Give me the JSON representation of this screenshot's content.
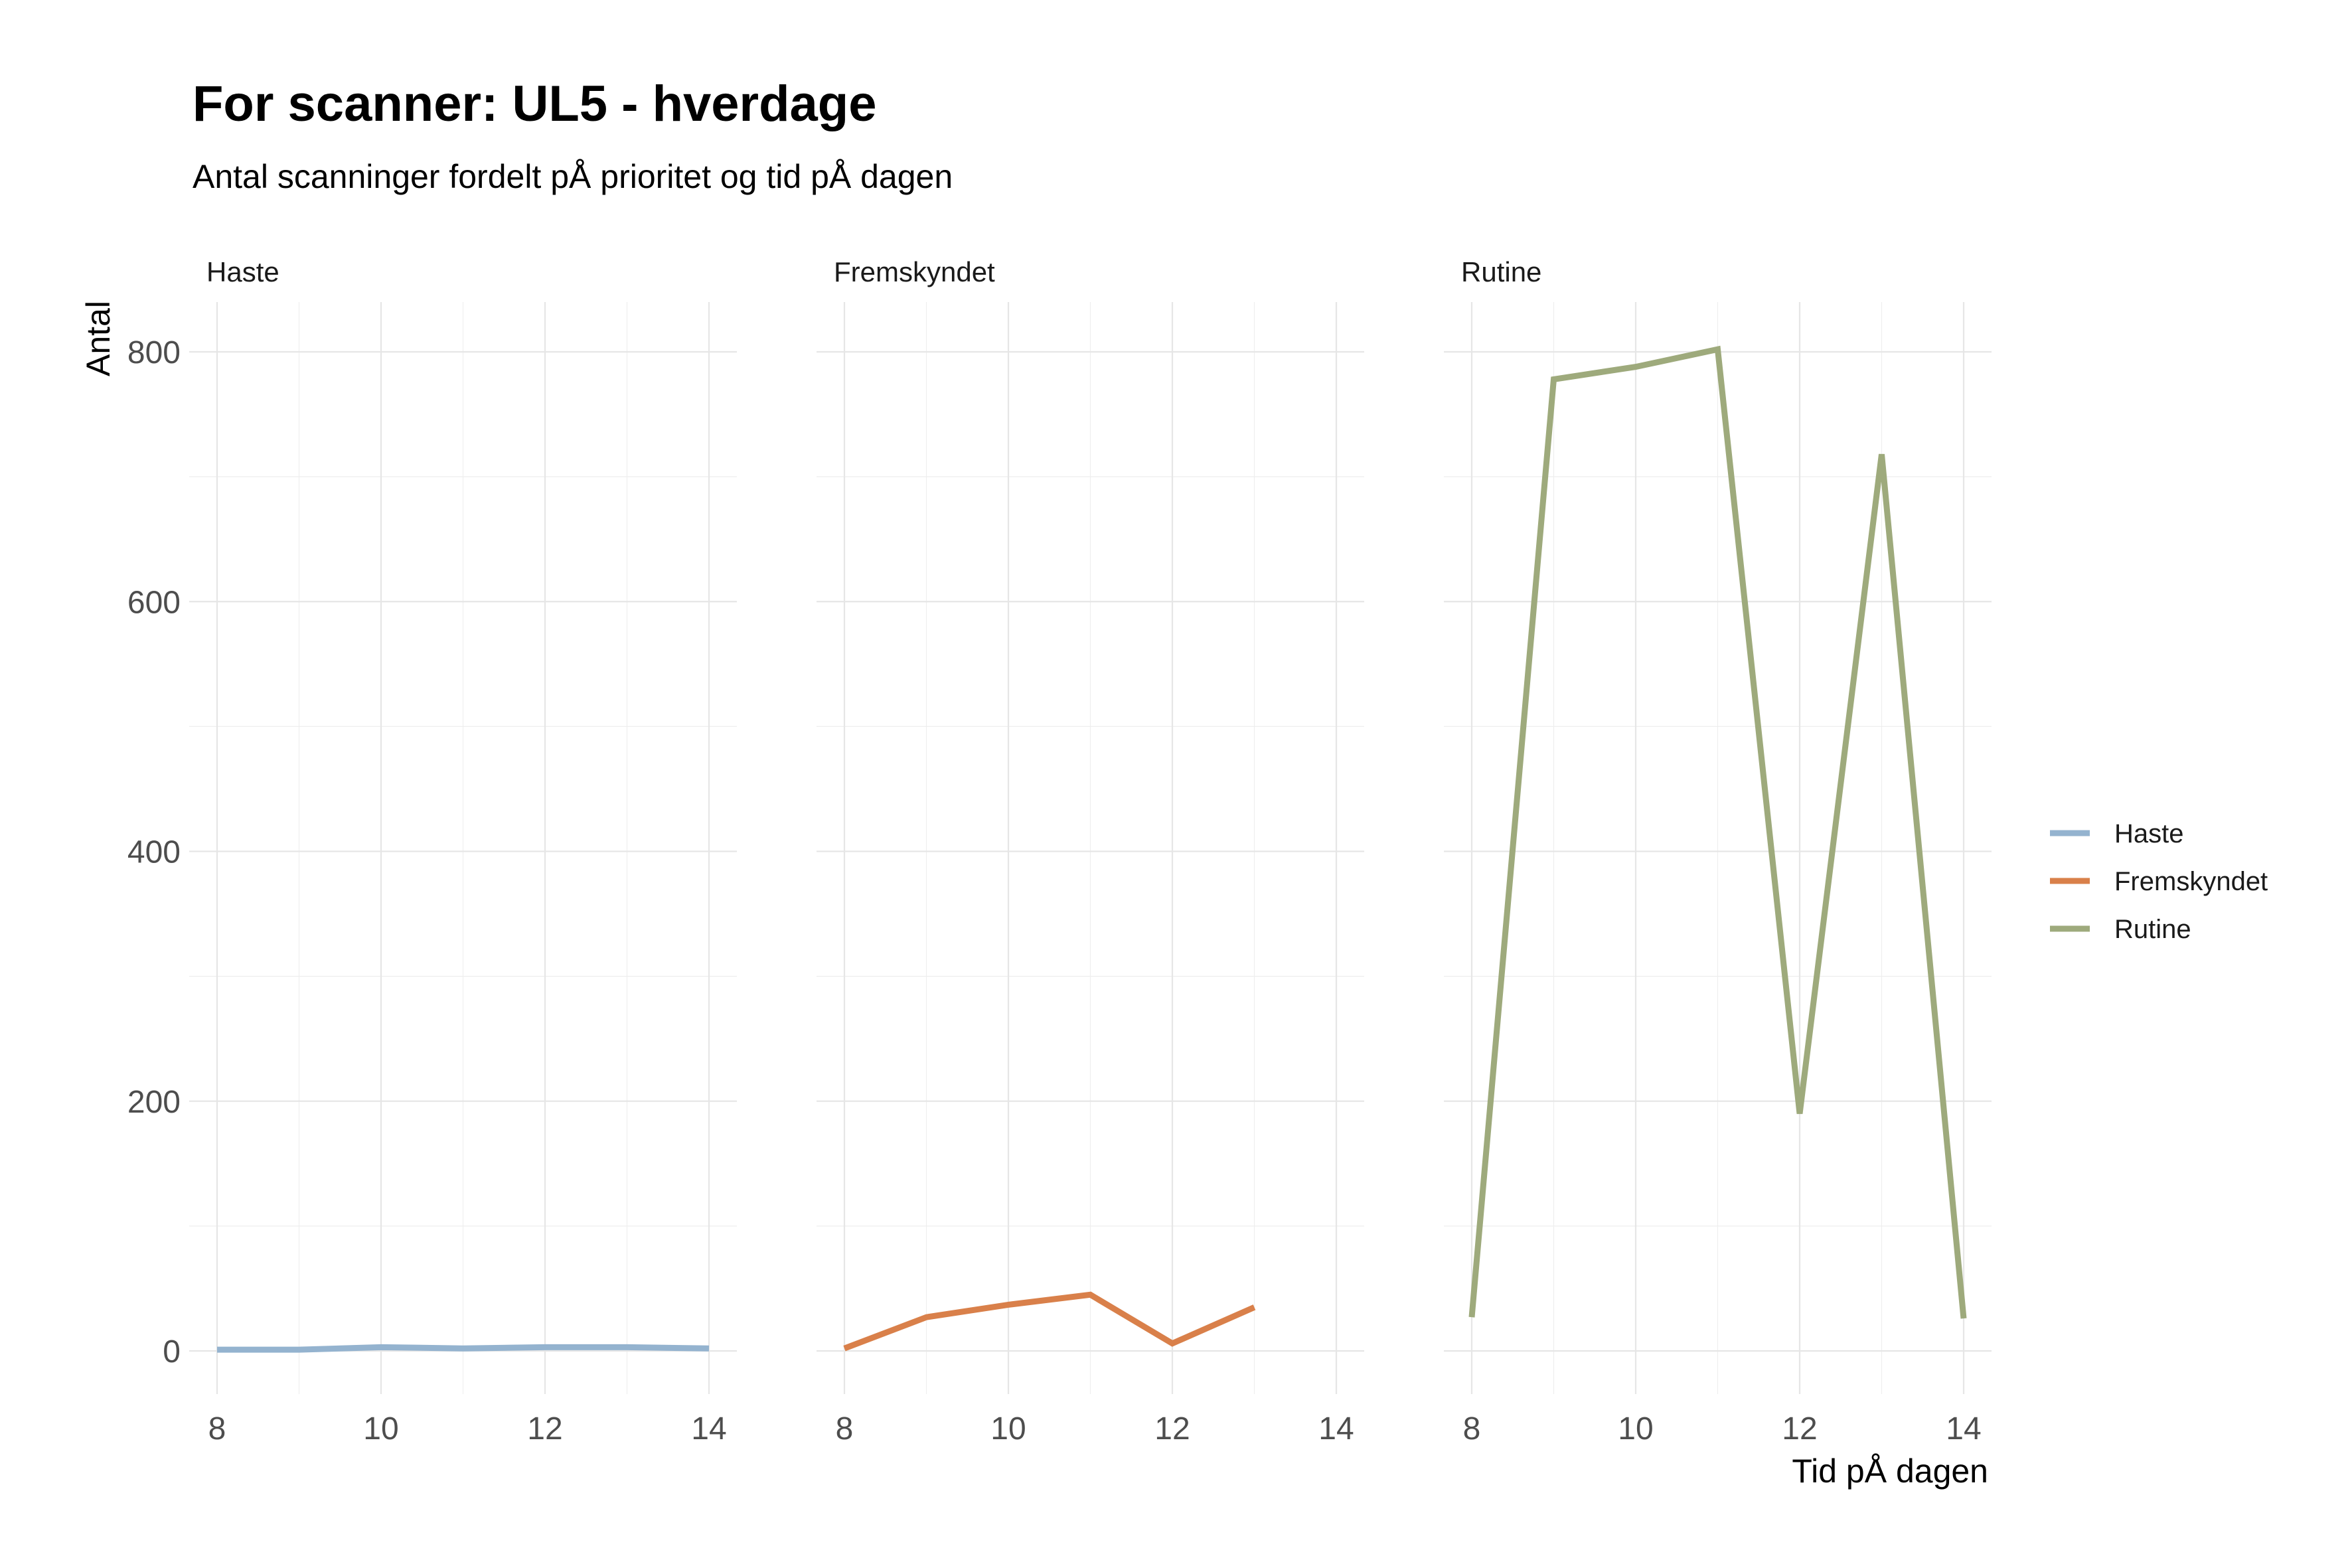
{
  "chart_data": {
    "type": "line",
    "title": "For scanner: UL5 - hverdage",
    "subtitle": "Antal scanninger fordelt pÅ prioritet og tid pÅ dagen",
    "xlabel": "Tid pÅ dagen",
    "ylabel": "Antal",
    "xlim": [
      8,
      14
    ],
    "ylim": [
      0,
      800
    ],
    "x_ticks": [
      8,
      10,
      12,
      14
    ],
    "y_ticks": [
      0,
      200,
      400,
      600,
      800
    ],
    "grid": true,
    "legend": "right",
    "facets": [
      "Haste",
      "Fremskyndet",
      "Rutine"
    ],
    "series": [
      {
        "name": "Haste",
        "color": "#94b3cf",
        "facet": "Haste",
        "x": [
          8,
          9,
          10,
          11,
          12,
          13,
          14
        ],
        "y": [
          1,
          1,
          3,
          2,
          3,
          3,
          2
        ]
      },
      {
        "name": "Fremskyndet",
        "color": "#d9804a",
        "facet": "Fremskyndet",
        "x": [
          8,
          9,
          10,
          11,
          12,
          13
        ],
        "y": [
          2,
          27,
          37,
          45,
          6,
          35
        ]
      },
      {
        "name": "Rutine",
        "color": "#9eaa7c",
        "facet": "Rutine",
        "x": [
          8,
          9,
          10,
          11,
          12,
          13,
          14
        ],
        "y": [
          27,
          778,
          788,
          802,
          190,
          718,
          26
        ]
      }
    ]
  }
}
